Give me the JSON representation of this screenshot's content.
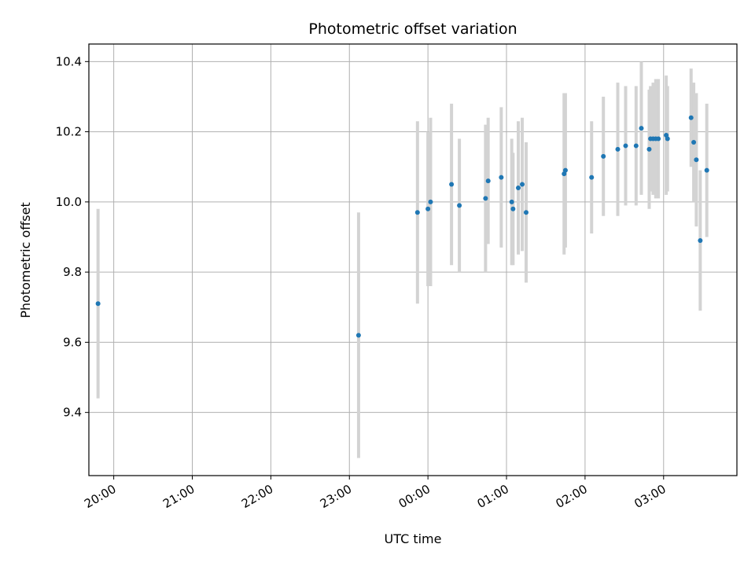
{
  "chart_data": {
    "type": "scatter",
    "title": "Photometric offset variation",
    "xlabel": "UTC time",
    "ylabel": "Photometric offset",
    "x_axis": {
      "kind": "time",
      "min": "19:41",
      "max": "03:56",
      "ticks": [
        "20:00",
        "21:00",
        "22:00",
        "23:00",
        "00:00",
        "01:00",
        "02:00",
        "03:00"
      ]
    },
    "y_axis": {
      "min": 9.22,
      "max": 10.45,
      "ticks": [
        "9.4",
        "9.6",
        "9.8",
        "10.0",
        "10.2",
        "10.4"
      ]
    },
    "grid": true,
    "colors": {
      "marker": "#1f77b4",
      "errorbar": "#d3d3d3",
      "grid": "#b0b0b0"
    },
    "points": [
      {
        "x": "19:48",
        "y": 9.71,
        "err": 0.27
      },
      {
        "x": "23:07",
        "y": 9.62,
        "err": 0.35
      },
      {
        "x": "23:52",
        "y": 9.97,
        "err": 0.26
      },
      {
        "x": "00:00",
        "y": 9.98,
        "err": 0.22
      },
      {
        "x": "00:02",
        "y": 10.0,
        "err": 0.24
      },
      {
        "x": "00:18",
        "y": 10.05,
        "err": 0.23
      },
      {
        "x": "00:24",
        "y": 9.99,
        "err": 0.19
      },
      {
        "x": "00:44",
        "y": 10.01,
        "err": 0.21
      },
      {
        "x": "00:46",
        "y": 10.06,
        "err": 0.18
      },
      {
        "x": "00:56",
        "y": 10.07,
        "err": 0.2
      },
      {
        "x": "01:04",
        "y": 10.0,
        "err": 0.18
      },
      {
        "x": "01:05",
        "y": 9.98,
        "err": 0.16
      },
      {
        "x": "01:09",
        "y": 10.04,
        "err": 0.19
      },
      {
        "x": "01:12",
        "y": 10.05,
        "err": 0.19
      },
      {
        "x": "01:15",
        "y": 9.97,
        "err": 0.2
      },
      {
        "x": "01:44",
        "y": 10.08,
        "err": 0.23
      },
      {
        "x": "01:45",
        "y": 10.09,
        "err": 0.22
      },
      {
        "x": "02:05",
        "y": 10.07,
        "err": 0.16
      },
      {
        "x": "02:14",
        "y": 10.13,
        "err": 0.17
      },
      {
        "x": "02:25",
        "y": 10.15,
        "err": 0.19
      },
      {
        "x": "02:31",
        "y": 10.16,
        "err": 0.17
      },
      {
        "x": "02:39",
        "y": 10.16,
        "err": 0.17
      },
      {
        "x": "02:43",
        "y": 10.21,
        "err": 0.19
      },
      {
        "x": "02:49",
        "y": 10.15,
        "err": 0.17
      },
      {
        "x": "02:50",
        "y": 10.18,
        "err": 0.15
      },
      {
        "x": "02:52",
        "y": 10.18,
        "err": 0.16
      },
      {
        "x": "02:54",
        "y": 10.18,
        "err": 0.17
      },
      {
        "x": "02:56",
        "y": 10.18,
        "err": 0.17
      },
      {
        "x": "03:02",
        "y": 10.19,
        "err": 0.17
      },
      {
        "x": "03:03",
        "y": 10.18,
        "err": 0.15
      },
      {
        "x": "03:21",
        "y": 10.24,
        "err": 0.14
      },
      {
        "x": "03:23",
        "y": 10.17,
        "err": 0.17
      },
      {
        "x": "03:25",
        "y": 10.12,
        "err": 0.19
      },
      {
        "x": "03:28",
        "y": 9.89,
        "err": 0.2
      },
      {
        "x": "03:33",
        "y": 10.09,
        "err": 0.19
      }
    ]
  }
}
